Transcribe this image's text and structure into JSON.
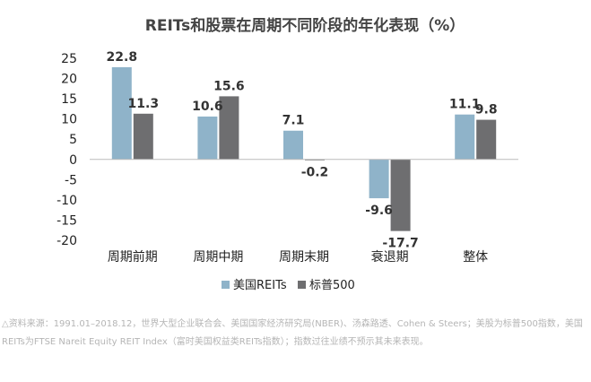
{
  "chart_data": {
    "type": "bar",
    "title": "REITs和股票在周期不同阶段的年化表现（%）",
    "categories": [
      "周期前期",
      "周期中期",
      "周期末期",
      "衰退期",
      "整体"
    ],
    "series": [
      {
        "name": "美国REITs",
        "values": [
          22.8,
          10.6,
          7.1,
          -9.6,
          11.1
        ],
        "labels": [
          "22.8",
          "10.6",
          "7.1",
          "-9.6",
          "11.1"
        ]
      },
      {
        "name": "标普500",
        "values": [
          11.3,
          15.6,
          -0.2,
          -17.7,
          9.8
        ],
        "labels": [
          "11.3",
          "15.6",
          "-0.2",
          "-17.7",
          "9.8"
        ]
      }
    ],
    "ylim": [
      -20,
      25
    ],
    "yticks": [
      "25",
      "20",
      "15",
      "10",
      "5",
      "0",
      "-5",
      "-10",
      "-15",
      "-20"
    ],
    "ytick_values": [
      25,
      20,
      15,
      10,
      5,
      0,
      -5,
      -10,
      -15,
      -20
    ],
    "grid": false,
    "legend_position": "bottom",
    "colors": {
      "series": [
        "#8fb3c9",
        "#6e6e70"
      ],
      "axis": "#bbbbbb"
    }
  },
  "source_note": "△资料来源：1991.01–2018.12，世界大型企业联合会、美国国家经济研究局(NBER)、汤森路透、Cohen & Steers；美股为标普500指数，美国REITs为FTSE Nareit Equity REIT Index（富时美国权益类REITs指数）；指数过往业绩不预示其未来表现。"
}
